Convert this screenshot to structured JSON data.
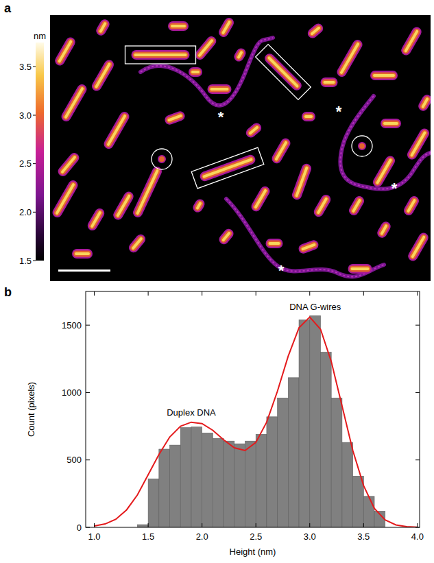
{
  "chart_data": [
    {
      "type": "image",
      "panel": "a",
      "colorbar": {
        "label": "nm",
        "range": [
          1.5,
          3.75
        ],
        "ticks": [
          1.5,
          {
            "value": 2,
            "label": "2.0"
          },
          2.5,
          {
            "value": 3,
            "label": "3.0"
          },
          3.5
        ]
      },
      "annotations": [
        "*",
        "*",
        "*",
        "*"
      ]
    },
    {
      "type": "histogram",
      "panel": "b",
      "x_label": "Height (nm)",
      "y_label": "Count (pixels)",
      "bins": [
        1.4,
        1.5,
        1.6,
        1.7,
        1.8,
        1.9,
        2.0,
        2.1,
        2.2,
        2.3,
        2.4,
        2.5,
        2.6,
        2.7,
        2.8,
        2.9,
        3.0,
        3.1,
        3.2,
        3.3,
        3.4,
        3.5,
        3.6,
        3.7
      ],
      "counts": [
        20,
        360,
        580,
        610,
        740,
        745,
        700,
        660,
        640,
        620,
        640,
        690,
        820,
        960,
        1110,
        1540,
        1570,
        1300,
        960,
        630,
        380,
        230,
        120
      ],
      "color": "#808080",
      "fit": {
        "type": "line",
        "color": "#e41a1c",
        "x": [
          1.0,
          1.1,
          1.2,
          1.3,
          1.4,
          1.5,
          1.6,
          1.7,
          1.8,
          1.9,
          2.0,
          2.1,
          2.2,
          2.3,
          2.4,
          2.5,
          2.6,
          2.7,
          2.8,
          2.9,
          3.0,
          3.1,
          3.2,
          3.3,
          3.4,
          3.5,
          3.6,
          3.7,
          3.8,
          3.9,
          4.0
        ],
        "values": [
          10,
          25,
          60,
          130,
          240,
          390,
          540,
          670,
          750,
          780,
          770,
          720,
          650,
          590,
          570,
          630,
          780,
          1010,
          1270,
          1480,
          1560,
          1470,
          1230,
          900,
          570,
          310,
          140,
          55,
          18,
          5,
          1
        ]
      },
      "annotations": [
        "Duplex DNA",
        "DNA G-wires"
      ],
      "xlim": [
        0.92,
        4.02
      ],
      "ylim": [
        0,
        1750
      ],
      "xticks": [
        {
          "value": 1,
          "label": "1.0"
        },
        1.5,
        {
          "value": 2,
          "label": "2.0"
        },
        2.5,
        {
          "value": 3,
          "label": "3.0"
        },
        3.5,
        {
          "value": 4,
          "label": "4.0"
        }
      ],
      "yticks": [
        0,
        500,
        1000,
        1500
      ]
    }
  ]
}
